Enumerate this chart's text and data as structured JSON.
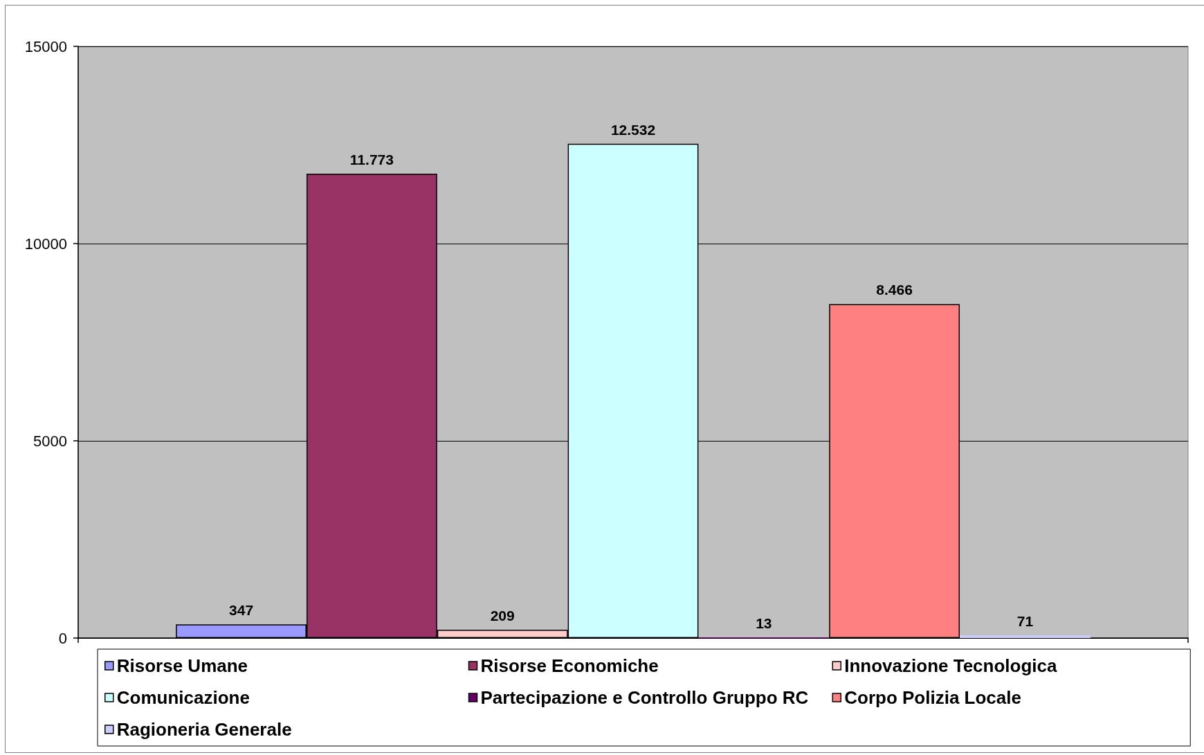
{
  "chart_data": {
    "type": "bar",
    "categories": [
      null
    ],
    "series": [
      {
        "name": "Risorse Umane",
        "color": "#9999ff",
        "values": [
          347
        ],
        "value_labels": [
          "347"
        ]
      },
      {
        "name": "Risorse Economiche",
        "color": "#993366",
        "values": [
          11773
        ],
        "value_labels": [
          "11.773"
        ]
      },
      {
        "name": "Innovazione Tecnologica",
        "color": "#ffcccc",
        "values": [
          209
        ],
        "value_labels": [
          "209"
        ]
      },
      {
        "name": "Comunicazione",
        "color": "#ccffff",
        "values": [
          12532
        ],
        "value_labels": [
          "12.532"
        ]
      },
      {
        "name": "Partecipazione e Controllo Gruppo RC",
        "color": "#660066",
        "values": [
          13
        ],
        "value_labels": [
          "13"
        ]
      },
      {
        "name": "Corpo Polizia Locale",
        "color": "#ff8080",
        "values": [
          8466
        ],
        "value_labels": [
          "8.466"
        ]
      },
      {
        "name": "Ragioneria Generale",
        "color": "#ccccff",
        "values": [
          71
        ],
        "value_labels": [
          "71"
        ]
      }
    ],
    "ylim": [
      0,
      15000
    ],
    "yticks": [
      0,
      5000,
      10000,
      15000
    ],
    "grid": "y",
    "legend": "bottom"
  }
}
